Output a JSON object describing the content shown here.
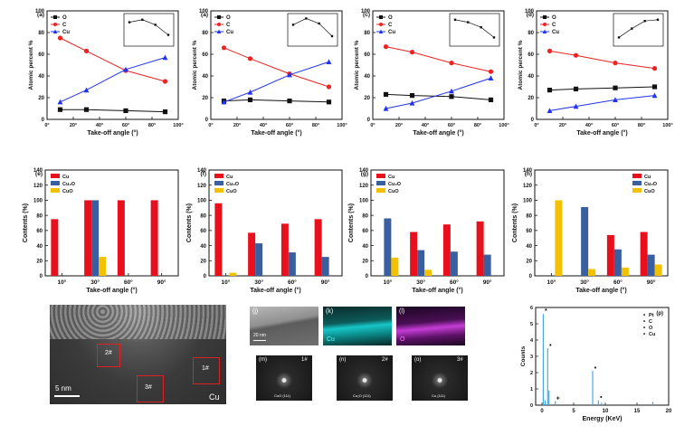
{
  "chart_data": [
    {
      "type": "line",
      "panel": "(a)",
      "xlabel": "Take-off angle (°)",
      "ylabel": "Atomic percent %",
      "xlim": [
        0,
        100
      ],
      "ylim": [
        0,
        100
      ],
      "x": [
        10,
        30,
        60,
        90
      ],
      "series": [
        {
          "name": "O",
          "color": "#111111",
          "marker": "square",
          "values": [
            9,
            9,
            8,
            7
          ]
        },
        {
          "name": "C",
          "color": "#ee2222",
          "marker": "circle",
          "values": [
            75,
            63,
            45,
            35
          ]
        },
        {
          "name": "Cu",
          "color": "#2233ee",
          "marker": "triangle",
          "values": [
            16,
            27,
            46,
            57
          ]
        }
      ],
      "inset": {
        "values": [
          0.8,
          0.9,
          0.7,
          0.3
        ]
      }
    },
    {
      "type": "line",
      "panel": "(a)",
      "xlabel": "Take-off angle (°)",
      "ylabel": "Atomic percent %",
      "xlim": [
        0,
        100
      ],
      "ylim": [
        0,
        100
      ],
      "x": [
        10,
        30,
        60,
        90
      ],
      "series": [
        {
          "name": "O",
          "color": "#111111",
          "marker": "square",
          "values": [
            17,
            18,
            17,
            16
          ]
        },
        {
          "name": "C",
          "color": "#ee2222",
          "marker": "circle",
          "values": [
            66,
            56,
            42,
            30
          ]
        },
        {
          "name": "Cu",
          "color": "#2233ee",
          "marker": "triangle",
          "values": [
            16,
            25,
            41,
            53
          ]
        }
      ],
      "inset": {
        "values": [
          0.7,
          0.95,
          0.75,
          0.25
        ]
      }
    },
    {
      "type": "line",
      "panel": "(c)",
      "xlabel": "Take-off angle (°)",
      "ylabel": "Atomic percent %",
      "xlim": [
        0,
        100
      ],
      "ylim": [
        0,
        100
      ],
      "x": [
        10,
        30,
        60,
        90
      ],
      "series": [
        {
          "name": "O",
          "color": "#111111",
          "marker": "square",
          "values": [
            23,
            22,
            21,
            18
          ]
        },
        {
          "name": "C",
          "color": "#ee2222",
          "marker": "circle",
          "values": [
            67,
            62,
            52,
            44
          ]
        },
        {
          "name": "Cu",
          "color": "#2233ee",
          "marker": "triangle",
          "values": [
            10,
            15,
            26,
            38
          ]
        }
      ],
      "inset": {
        "values": [
          0.9,
          0.8,
          0.6,
          0.2
        ]
      }
    },
    {
      "type": "line",
      "panel": "(d)",
      "xlabel": "Take-off angle (°)",
      "ylabel": "Atomic percent %",
      "xlim": [
        0,
        100
      ],
      "ylim": [
        0,
        100
      ],
      "x": [
        10,
        30,
        60,
        90
      ],
      "series": [
        {
          "name": "O",
          "color": "#111111",
          "marker": "square",
          "values": [
            27,
            28,
            29,
            30
          ]
        },
        {
          "name": "C",
          "color": "#ee2222",
          "marker": "circle",
          "values": [
            63,
            59,
            52,
            47
          ]
        },
        {
          "name": "Cu",
          "color": "#2233ee",
          "marker": "triangle",
          "values": [
            8,
            12,
            18,
            22
          ]
        }
      ],
      "inset": {
        "values": [
          0.2,
          0.55,
          0.85,
          0.9
        ]
      }
    },
    {
      "type": "bar",
      "panel": "(e)",
      "xlabel": "Take-off angle (°)",
      "ylabel": "Contents (%)",
      "ylim": [
        0,
        140
      ],
      "yticks": [
        0,
        20,
        40,
        60,
        80,
        100,
        120,
        140
      ],
      "categories": [
        "10°",
        "30°",
        "60°",
        "90°"
      ],
      "series": [
        {
          "name": "Cu",
          "color": "#e8101c",
          "values": [
            75,
            100,
            100,
            100
          ]
        },
        {
          "name": "Cu₂O",
          "color": "#3a5fa0",
          "values": [
            0,
            100,
            0,
            0
          ]
        },
        {
          "name": "CuO",
          "color": "#f2c200",
          "values": [
            0,
            25,
            0,
            0
          ]
        }
      ]
    },
    {
      "type": "bar",
      "panel": "(f)",
      "xlabel": "Take-off angle (°)",
      "ylabel": "Contents (%)",
      "ylim": [
        0,
        140
      ],
      "yticks": [
        0,
        20,
        40,
        60,
        80,
        100,
        120,
        140
      ],
      "categories": [
        "10°",
        "30°",
        "60°",
        "90°"
      ],
      "series": [
        {
          "name": "Cu",
          "color": "#e8101c",
          "values": [
            96,
            57,
            69,
            75
          ]
        },
        {
          "name": "Cu₂O",
          "color": "#3a5fa0",
          "values": [
            0,
            43,
            31,
            25
          ]
        },
        {
          "name": "CuO",
          "color": "#f2c200",
          "values": [
            4,
            0,
            0,
            0
          ]
        }
      ]
    },
    {
      "type": "bar",
      "panel": "(g)",
      "xlabel": "Take-off angle (°)",
      "ylabel": "Contents (%)",
      "ylim": [
        0,
        140
      ],
      "yticks": [
        0,
        20,
        40,
        60,
        80,
        100,
        120,
        140
      ],
      "categories": [
        "10°",
        "30°",
        "60°",
        "90°"
      ],
      "series": [
        {
          "name": "Cu",
          "color": "#e8101c",
          "values": [
            0,
            58,
            68,
            72
          ]
        },
        {
          "name": "Cu₂O",
          "color": "#3a5fa0",
          "values": [
            76,
            34,
            32,
            28
          ]
        },
        {
          "name": "CuO",
          "color": "#f2c200",
          "values": [
            24,
            8,
            0,
            0
          ]
        }
      ]
    },
    {
      "type": "bar",
      "panel": "(h)",
      "xlabel": "Take-off angle (°)",
      "ylabel": "Contents (%)",
      "ylim": [
        0,
        140
      ],
      "yticks": [
        0,
        20,
        40,
        60,
        80,
        100,
        120,
        140
      ],
      "categories": [
        "10°",
        "30°",
        "60°",
        "90°"
      ],
      "series": [
        {
          "name": "Cu",
          "color": "#e8101c",
          "values": [
            0,
            0,
            54,
            58
          ]
        },
        {
          "name": "Cu₂O",
          "color": "#3a5fa0",
          "values": [
            0,
            91,
            35,
            28
          ]
        },
        {
          "name": "CuO",
          "color": "#f2c200",
          "values": [
            100,
            9,
            11,
            15
          ]
        }
      ]
    },
    {
      "type": "bar",
      "panel": "(p)",
      "xlabel": "Energy (KeV)",
      "ylabel": "Counts",
      "xlim": [
        -1,
        20
      ],
      "xticks": [
        0,
        5,
        10,
        15,
        20
      ],
      "ylim": [
        0,
        6
      ],
      "yticks": [
        0,
        1,
        2,
        3,
        4,
        5,
        6
      ],
      "legend": [
        "Pt",
        "C",
        "O",
        "Cu"
      ],
      "peaks": [
        {
          "x": 0.2,
          "y": 5.6,
          "label": "*"
        },
        {
          "x": 0.5,
          "y": 0.3
        },
        {
          "x": 0.9,
          "y": 3.5,
          "label": "•"
        },
        {
          "x": 1.1,
          "y": 0.9
        },
        {
          "x": 2.1,
          "y": 0.25,
          "label": "+"
        },
        {
          "x": 8.0,
          "y": 2.1,
          "label": "•"
        },
        {
          "x": 8.9,
          "y": 0.3,
          "label": "•"
        },
        {
          "x": 9.4,
          "y": 0.15
        },
        {
          "x": 17.5,
          "y": 0.2
        }
      ]
    }
  ],
  "images": {
    "tem": {
      "scale": "5 nm",
      "material": "Cu",
      "regions": [
        "2#",
        "3#",
        "1#"
      ]
    },
    "j": {
      "label": "(j)",
      "scale": "20 nm"
    },
    "k": {
      "label": "(k)",
      "element": "Cu"
    },
    "l": {
      "label": "(l)",
      "element": "O"
    },
    "m": {
      "label": "(m)",
      "region": "1#",
      "caption": "CuO (111)"
    },
    "n": {
      "label": "(n)",
      "region": "2#",
      "caption": "Cu₂O (111)"
    },
    "o": {
      "label": "(o)",
      "region": "3#",
      "caption": "Cu (111)"
    }
  }
}
